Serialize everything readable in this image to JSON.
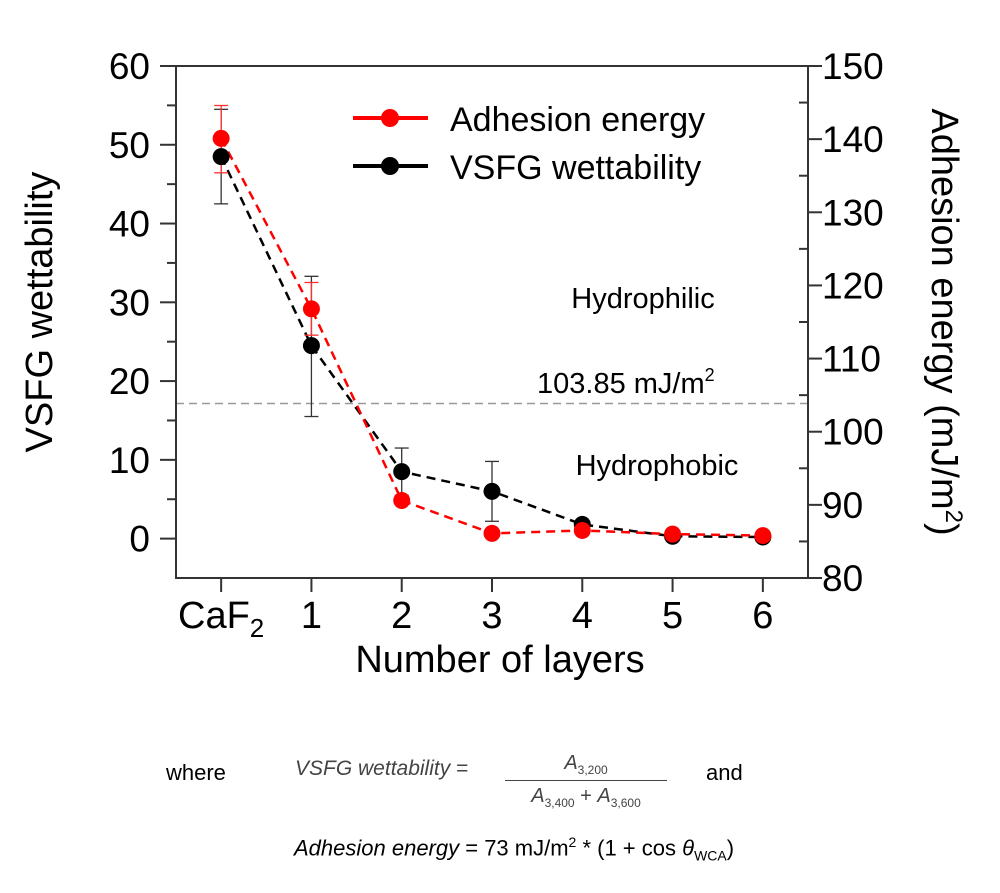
{
  "chart_data": {
    "type": "line",
    "categories": [
      "CaF2",
      "1",
      "2",
      "3",
      "4",
      "5",
      "6"
    ],
    "category_labels": [
      {
        "base": "CaF",
        "sub": "2"
      },
      {
        "base": "1",
        "sub": ""
      },
      {
        "base": "2",
        "sub": ""
      },
      {
        "base": "3",
        "sub": ""
      },
      {
        "base": "4",
        "sub": ""
      },
      {
        "base": "5",
        "sub": ""
      },
      {
        "base": "6",
        "sub": ""
      }
    ],
    "xlabel": "Number of layers",
    "ylabel_left": "VSFG wettability",
    "ylabel_right": {
      "base": "Adhesion energy (mJ/m",
      "sup": "2",
      "end": ")"
    },
    "ylim_left": [
      -5,
      60
    ],
    "ylim_right": [
      80,
      150
    ],
    "yticks_left": [
      0,
      10,
      20,
      30,
      40,
      50,
      60
    ],
    "yticks_right": [
      80,
      90,
      100,
      110,
      120,
      130,
      140,
      150
    ],
    "grid": false,
    "legend_position": "top-right",
    "series": [
      {
        "name": "Adhesion energy",
        "axis": "right",
        "color": "#ff0000",
        "line_style": "dashed",
        "values": [
          140.1,
          116.8,
          90.6,
          86.1,
          86.5,
          86.0,
          85.8
        ],
        "error": [
          [
            135.4,
            144.6
          ],
          [
            113.2,
            120.4
          ],
          null,
          null,
          null,
          null,
          null
        ]
      },
      {
        "name": "VSFG wettability",
        "axis": "left",
        "color": "#000000",
        "line_style": "dashed",
        "values": [
          48.5,
          24.5,
          8.5,
          6.0,
          1.8,
          0.3,
          0.2
        ],
        "error": [
          [
            42.5,
            54.5
          ],
          [
            15.5,
            33.3
          ],
          [
            5.5,
            11.5
          ],
          [
            2.2,
            9.8
          ],
          null,
          null,
          null
        ]
      }
    ],
    "threshold": {
      "value": 103.85,
      "axis": "right",
      "label": {
        "base": "103.85 mJ/m",
        "sup": "2"
      },
      "color": "#999999"
    },
    "annotations": [
      "Hydrophilic",
      "Hydrophobic"
    ]
  },
  "equations": {
    "where": "where",
    "vsfg_lhs": "VSFG wettability",
    "equals": "=",
    "num": {
      "base": "A",
      "sub": "3,200"
    },
    "den": [
      {
        "base": "A",
        "sub": "3,400"
      },
      {
        "plus": "+"
      },
      {
        "base": "A",
        "sub": "3,600"
      }
    ],
    "and": "and",
    "adhesion_lhs": "Adhesion energy",
    "adhesion_rhs_a": " = 73 mJ/m",
    "adhesion_sup": "2",
    "adhesion_rhs_b": " * (1 + cos ",
    "theta": "θ",
    "theta_sub": "WCA",
    "adhesion_close": ")"
  }
}
